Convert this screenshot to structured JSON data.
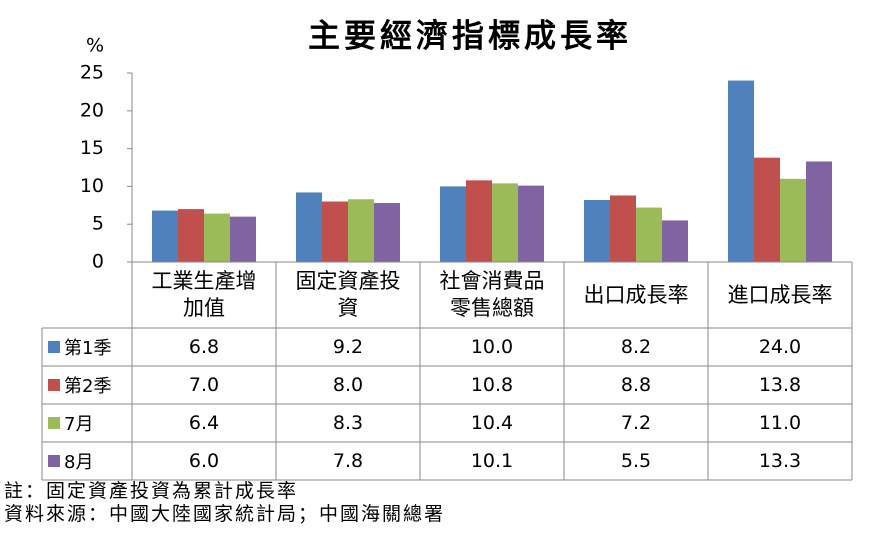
{
  "chart_data": {
    "type": "bar",
    "title": "主要經濟指標成長率",
    "y_label": "%",
    "categories": [
      "工業生產增加值",
      "固定資產投資",
      "社會消費品零售總額",
      "出口成長率",
      "進口成長率"
    ],
    "series": [
      {
        "name": "第1季",
        "color": "#4f81bd",
        "values": [
          6.8,
          9.2,
          10.0,
          8.2,
          24.0
        ],
        "value_labels": [
          "6.8",
          "9.2",
          "10.0",
          "8.2",
          "24.0"
        ]
      },
      {
        "name": "第2季",
        "color": "#c0504d",
        "values": [
          7.0,
          8.0,
          10.8,
          8.8,
          13.8
        ],
        "value_labels": [
          "7.0",
          "8.0",
          "10.8",
          "8.8",
          "13.8"
        ]
      },
      {
        "name": "7月",
        "color": "#9bbb59",
        "values": [
          6.4,
          8.3,
          10.4,
          7.2,
          11.0
        ],
        "value_labels": [
          "6.4",
          "8.3",
          "10.4",
          "7.2",
          "11.0"
        ]
      },
      {
        "name": "8月",
        "color": "#8064a2",
        "values": [
          6.0,
          7.8,
          10.1,
          5.5,
          13.3
        ],
        "value_labels": [
          "6.0",
          "7.8",
          "10.1",
          "5.5",
          "13.3"
        ]
      }
    ],
    "ylim": [
      0,
      25
    ],
    "yticks": [
      0,
      5,
      10,
      15,
      20,
      25
    ],
    "grid": false,
    "notes": [
      "註：固定資產投資為累計成長率",
      "資料來源：中國大陸國家統計局；中國海關總署"
    ]
  }
}
